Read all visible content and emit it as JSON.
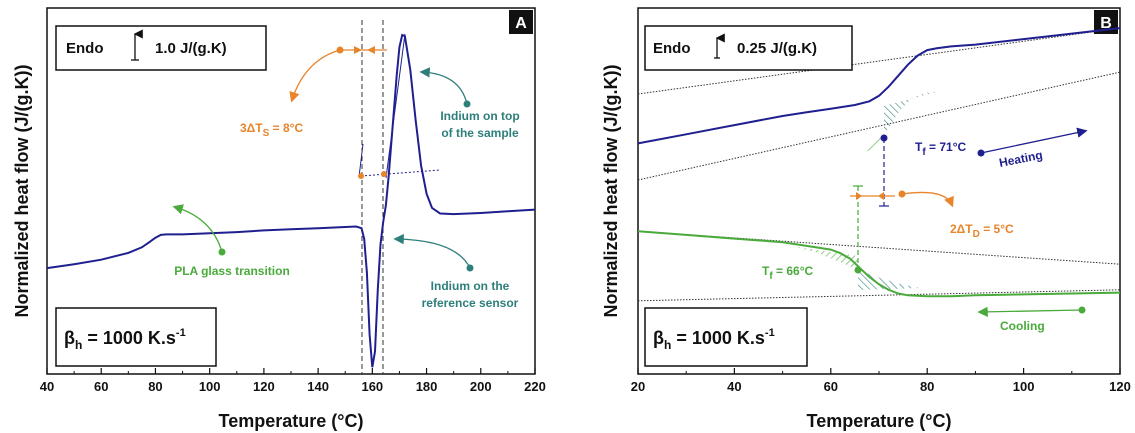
{
  "chart_data": [
    {
      "type": "line",
      "panel_label": "A",
      "xlabel": "Temperature (°C)",
      "ylabel": "Normalized heat flow (J/(g.K))",
      "xlim": [
        40,
        220
      ],
      "xticks": [
        40,
        60,
        80,
        100,
        120,
        140,
        160,
        180,
        200,
        220
      ],
      "scale_box": {
        "text": "Endo",
        "value": "1.0 J/(g.K)"
      },
      "rate_box": {
        "symbol": "β",
        "sub": "h",
        "text": " = 1000 K.s",
        "sup": "-1"
      },
      "series": [
        {
          "color": "#1f1f8f",
          "x": [
            40,
            50,
            60,
            70,
            75,
            78,
            80,
            82,
            84,
            86,
            90,
            100,
            110,
            120,
            130,
            140,
            150,
            154,
            156,
            157,
            158,
            159,
            160,
            161,
            162,
            163,
            164,
            165,
            166,
            167,
            168,
            169,
            170,
            171,
            172,
            174,
            176,
            178,
            180,
            182,
            185,
            190,
            200,
            210,
            220
          ],
          "y": [
            -0.62,
            -0.55,
            -0.47,
            -0.35,
            -0.25,
            -0.15,
            -0.08,
            -0.03,
            -0.02,
            -0.02,
            -0.02,
            0.0,
            0.02,
            0.05,
            0.07,
            0.09,
            0.11,
            0.12,
            0.09,
            -0.1,
            -0.7,
            -1.8,
            -2.38,
            -2.1,
            -1.0,
            -0.2,
            0.2,
            0.5,
            1.0,
            1.6,
            2.2,
            2.8,
            3.3,
            3.52,
            3.5,
            2.9,
            2.0,
            1.2,
            0.7,
            0.45,
            0.35,
            0.34,
            0.36,
            0.39,
            0.42
          ]
        }
      ],
      "ylim": [
        -2.5,
        4.0
      ],
      "annotations": [
        {
          "text": "3ΔT",
          "sub": "S",
          "after": " = 8°C",
          "color": "#e8842a"
        },
        {
          "line1": "Indium on top",
          "line2": "of the sample",
          "color": "#2e7e7a"
        },
        {
          "line1": "Indium on the",
          "line2": "reference sensor",
          "color": "#2e7e7a"
        },
        {
          "text": "PLA glass transition",
          "color": "#4aaa3b"
        }
      ]
    },
    {
      "type": "line",
      "panel_label": "B",
      "xlabel": "Temperature (°C)",
      "ylabel": "Normalized heat flow (J/(g.K))",
      "xlim": [
        20,
        120
      ],
      "xticks": [
        20,
        40,
        60,
        80,
        100,
        120
      ],
      "scale_box": {
        "text": "Endo",
        "value": "0.25 J/(g.K)"
      },
      "rate_box": {
        "symbol": "β",
        "sub": "h",
        "text": " = 1000 K.s",
        "sup": "-1"
      },
      "ylim": [
        -1.0,
        1.0
      ],
      "series": [
        {
          "name": "Heating",
          "color": "#1f1f8f",
          "x": [
            20,
            30,
            40,
            50,
            55,
            60,
            65,
            68,
            70,
            72,
            74,
            76,
            78,
            80,
            82,
            85,
            90,
            100,
            110,
            120
          ],
          "y": [
            0.26,
            0.31,
            0.36,
            0.41,
            0.43,
            0.45,
            0.47,
            0.49,
            0.52,
            0.57,
            0.63,
            0.69,
            0.74,
            0.77,
            0.78,
            0.79,
            0.8,
            0.83,
            0.86,
            0.89
          ]
        },
        {
          "name": "Cooling",
          "color": "#4aaa3b",
          "x": [
            20,
            30,
            40,
            50,
            55,
            60,
            62,
            64,
            66,
            68,
            70,
            72,
            74,
            76,
            80,
            85,
            90,
            100,
            110,
            120
          ],
          "y": [
            -0.22,
            -0.24,
            -0.26,
            -0.28,
            -0.3,
            -0.32,
            -0.34,
            -0.37,
            -0.42,
            -0.47,
            -0.51,
            -0.54,
            -0.56,
            -0.57,
            -0.575,
            -0.575,
            -0.57,
            -0.565,
            -0.56,
            -0.555
          ]
        }
      ],
      "baselines": [
        {
          "x": [
            20,
            120
          ],
          "y": [
            0.53,
            0.89
          ]
        },
        {
          "x": [
            20,
            120
          ],
          "y": [
            0.06,
            0.65
          ]
        },
        {
          "x": [
            20,
            120
          ],
          "y": [
            -0.22,
            -0.4
          ]
        },
        {
          "x": [
            20,
            120
          ],
          "y": [
            -0.6,
            -0.54
          ]
        }
      ],
      "annotations": [
        {
          "text": "T",
          "sub": "f",
          "after": " = 71°C",
          "color": "#1f1f8f"
        },
        {
          "text": "Heating",
          "color": "#1f1f8f"
        },
        {
          "text": "2ΔT",
          "sub": "D",
          "after": " = 5°C",
          "color": "#e8842a"
        },
        {
          "text": "T",
          "sub": "f",
          "after": " = 66°C",
          "color": "#4aaa3b"
        },
        {
          "text": "Cooling",
          "color": "#4aaa3b"
        }
      ]
    }
  ]
}
